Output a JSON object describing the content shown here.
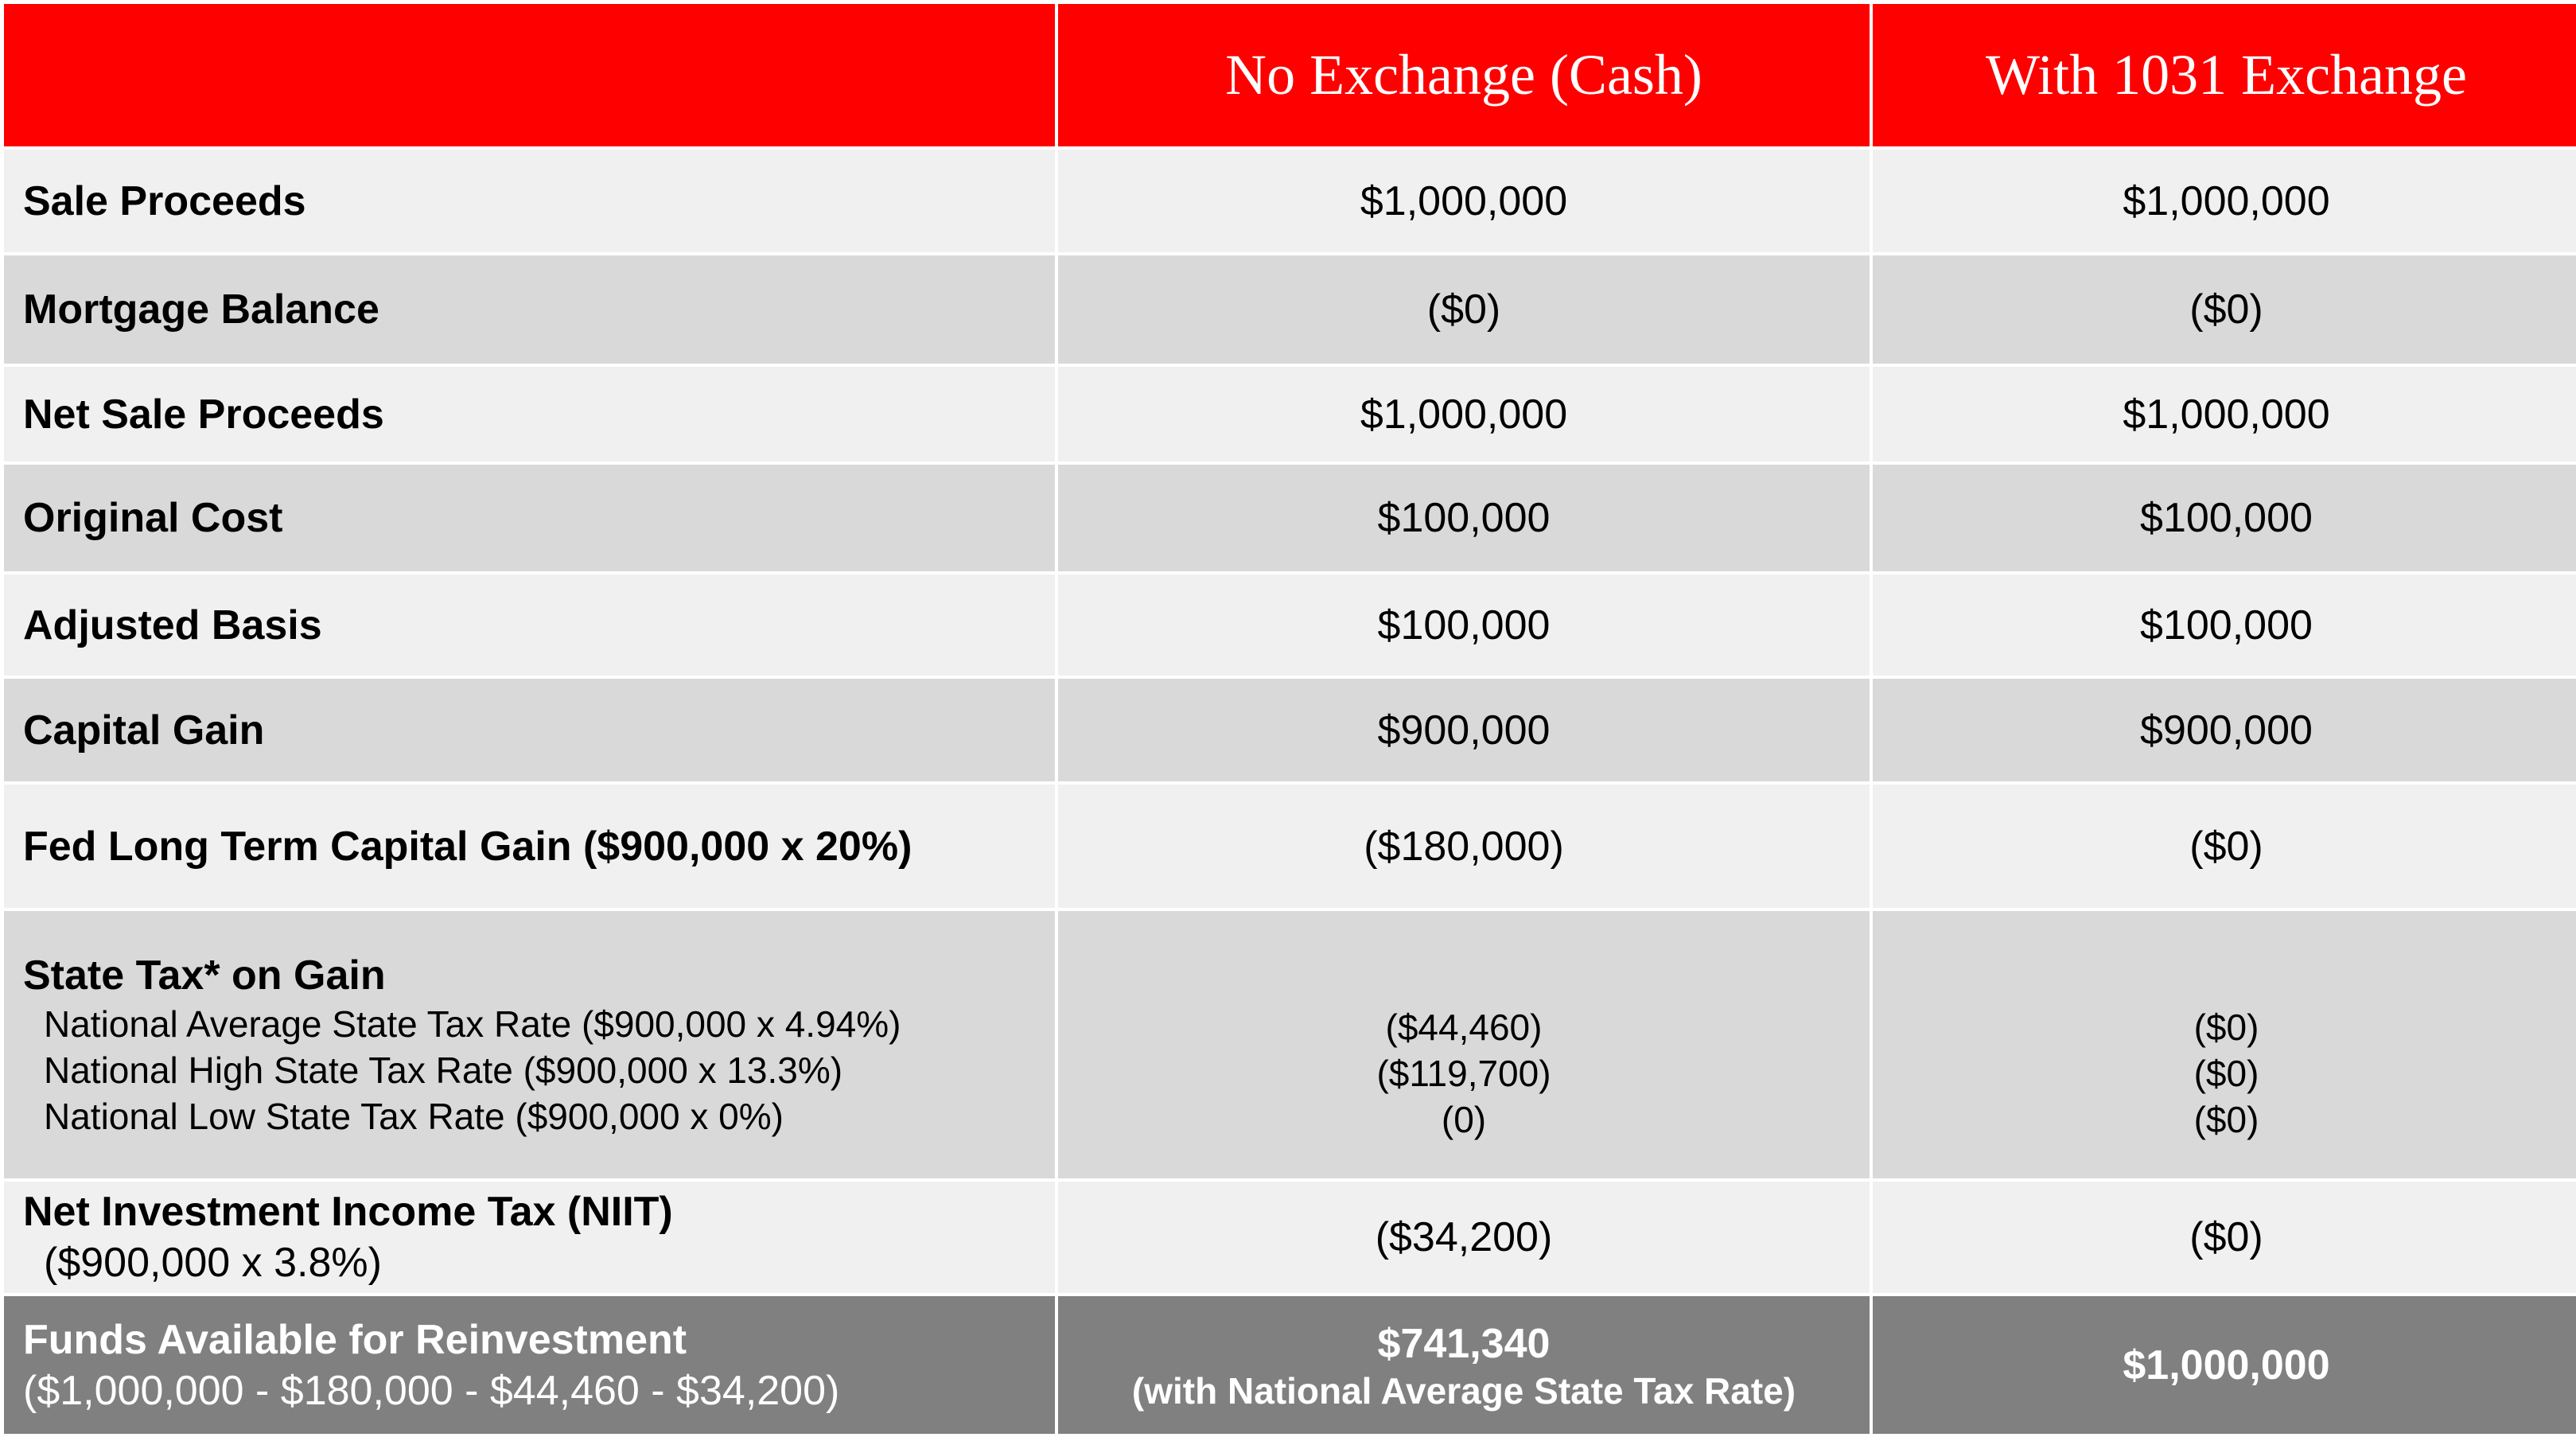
{
  "columns": {
    "no_exchange": "No Exchange (Cash)",
    "with_exchange": "With 1031 Exchange"
  },
  "rows": [
    {
      "label": "Sale Proceeds",
      "no_exchange": "$1,000,000",
      "with_exchange": "$1,000,000"
    },
    {
      "label": "Mortgage Balance",
      "no_exchange": "($0)",
      "with_exchange": "($0)"
    },
    {
      "label": "Net Sale Proceeds",
      "no_exchange": "$1,000,000",
      "with_exchange": "$1,000,000"
    },
    {
      "label": "Original Cost",
      "no_exchange": "$100,000",
      "with_exchange": "$100,000"
    },
    {
      "label": "Adjusted Basis",
      "no_exchange": "$100,000",
      "with_exchange": "$100,000"
    },
    {
      "label": "Capital Gain",
      "no_exchange": "$900,000",
      "with_exchange": "$900,000"
    },
    {
      "label": "Fed Long Term Capital Gain ($900,000 x 20%)",
      "no_exchange": "($180,000)",
      "with_exchange": "($0)"
    }
  ],
  "state_tax": {
    "label": "State Tax* on Gain",
    "sub": [
      {
        "label": "National Average State Tax Rate ($900,000 x 4.94%)",
        "no_exchange": "($44,460)",
        "with_exchange": "($0)"
      },
      {
        "label": "National High State Tax Rate ($900,000 x 13.3%)",
        "no_exchange": "($119,700)",
        "with_exchange": "($0)"
      },
      {
        "label": "National Low State Tax Rate ($900,000 x 0%)",
        "no_exchange": "(0)",
        "with_exchange": "($0)"
      }
    ]
  },
  "niit": {
    "label": "Net Investment Income Tax (NIIT)",
    "sublabel": "($900,000 x 3.8%)",
    "no_exchange": "($34,200)",
    "with_exchange": "($0)"
  },
  "funds": {
    "label": "Funds Available for Reinvestment",
    "sublabel": "($1,000,000 - $180,000 - $44,460 - $34,200)",
    "no_exchange": "$741,340",
    "no_exchange_note": "(with National Average State Tax Rate)",
    "with_exchange": "$1,000,000"
  }
}
